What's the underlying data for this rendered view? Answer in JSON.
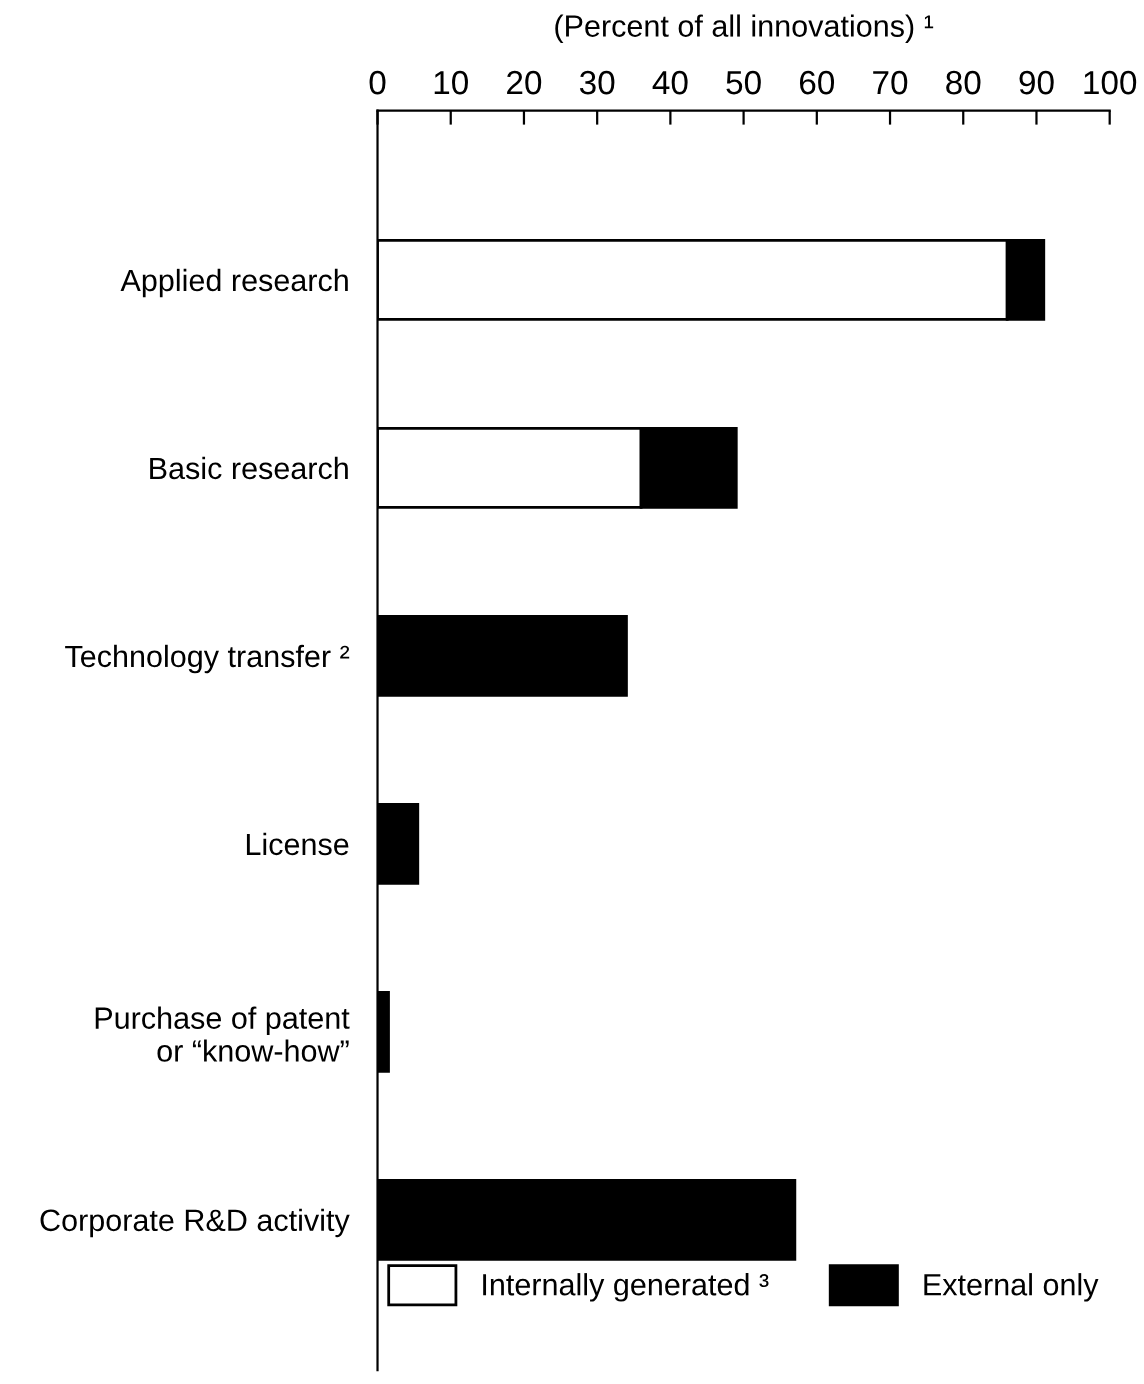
{
  "chart_data": {
    "type": "bar",
    "orientation": "horizontal",
    "stacked": true,
    "xlabel": "(Percent of all innovations) ¹",
    "categories": [
      "Applied research",
      "Basic research",
      "Technology transfer ²",
      "License",
      "Purchase of patent\nor “know-how”",
      "Corporate R&D activity"
    ],
    "series": [
      {
        "name": "Internally generated ³",
        "color": "#ffffff",
        "values": [
          86,
          36,
          null,
          null,
          null,
          null
        ]
      },
      {
        "name": "External only",
        "color": "#000000",
        "values": [
          5,
          13,
          34,
          5.5,
          1.5,
          57
        ]
      }
    ],
    "xlim": [
      0,
      100
    ],
    "xticks": [
      0,
      10,
      20,
      30,
      40,
      50,
      60,
      70,
      80,
      90,
      100
    ],
    "grid": false,
    "legend": "bottom"
  }
}
